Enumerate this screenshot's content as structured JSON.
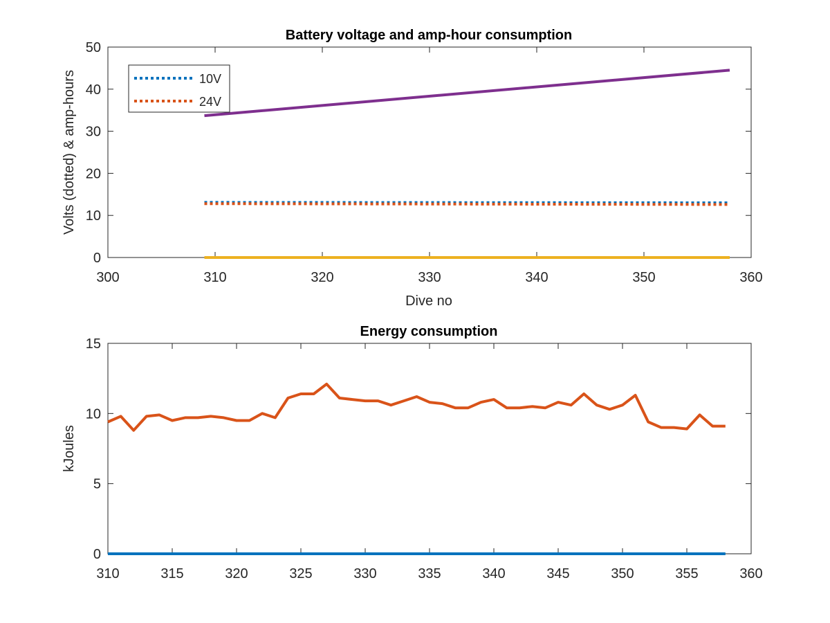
{
  "chart_data": [
    {
      "type": "line",
      "title": "Battery voltage and amp-hour consumption",
      "xlabel": "Dive no",
      "ylabel": "Volts (dotted) & amp-hours",
      "xlim": [
        300,
        360
      ],
      "ylim": [
        0,
        50
      ],
      "xticks": [
        300,
        310,
        320,
        330,
        340,
        350,
        360
      ],
      "yticks": [
        0,
        10,
        20,
        30,
        40,
        50
      ],
      "grid": false,
      "legend_position": "top-left",
      "series": [
        {
          "name": "10V",
          "style": "dotted",
          "color": "#0072BD",
          "x": [
            309,
            358
          ],
          "y": [
            13.1,
            13.0
          ]
        },
        {
          "name": "24V",
          "style": "dotted",
          "color": "#D95319",
          "x": [
            309,
            358
          ],
          "y": [
            12.8,
            12.6
          ]
        },
        {
          "style": "solid",
          "color": "#EDB120",
          "x": [
            309,
            358
          ],
          "y": [
            0,
            0
          ]
        },
        {
          "style": "solid",
          "color": "#7E2F8E",
          "x": [
            309,
            358
          ],
          "y": [
            33.7,
            44.5
          ]
        }
      ]
    },
    {
      "type": "line",
      "title": "Energy consumption",
      "xlabel": "",
      "ylabel": "kJoules",
      "xlim": [
        310,
        360
      ],
      "ylim": [
        0,
        15
      ],
      "xticks": [
        310,
        315,
        320,
        325,
        330,
        335,
        340,
        345,
        350,
        355,
        360
      ],
      "yticks": [
        0,
        5,
        10,
        15
      ],
      "grid": false,
      "series": [
        {
          "style": "solid",
          "color": "#0072BD",
          "x": [
            310,
            358
          ],
          "y": [
            0,
            0
          ]
        },
        {
          "style": "solid",
          "color": "#D95319",
          "x": [
            310,
            311,
            312,
            313,
            314,
            315,
            316,
            317,
            318,
            319,
            320,
            321,
            322,
            323,
            324,
            325,
            326,
            327,
            328,
            329,
            330,
            331,
            332,
            333,
            334,
            335,
            336,
            337,
            338,
            339,
            340,
            341,
            342,
            343,
            344,
            345,
            346,
            347,
            348,
            349,
            350,
            351,
            352,
            353,
            354,
            355,
            356,
            357,
            358
          ],
          "y": [
            9.4,
            9.8,
            8.8,
            9.8,
            9.9,
            9.5,
            9.7,
            9.7,
            9.8,
            9.7,
            9.5,
            9.5,
            10.0,
            9.7,
            11.1,
            11.4,
            11.4,
            12.1,
            11.1,
            11.0,
            10.9,
            10.9,
            10.6,
            10.9,
            11.2,
            10.8,
            10.7,
            10.4,
            10.4,
            10.8,
            11.0,
            10.4,
            10.4,
            10.5,
            10.4,
            10.8,
            10.6,
            11.4,
            10.6,
            10.3,
            10.6,
            11.3,
            9.4,
            9.0,
            9.0,
            8.9,
            9.9,
            9.1,
            9.1
          ]
        }
      ]
    }
  ]
}
